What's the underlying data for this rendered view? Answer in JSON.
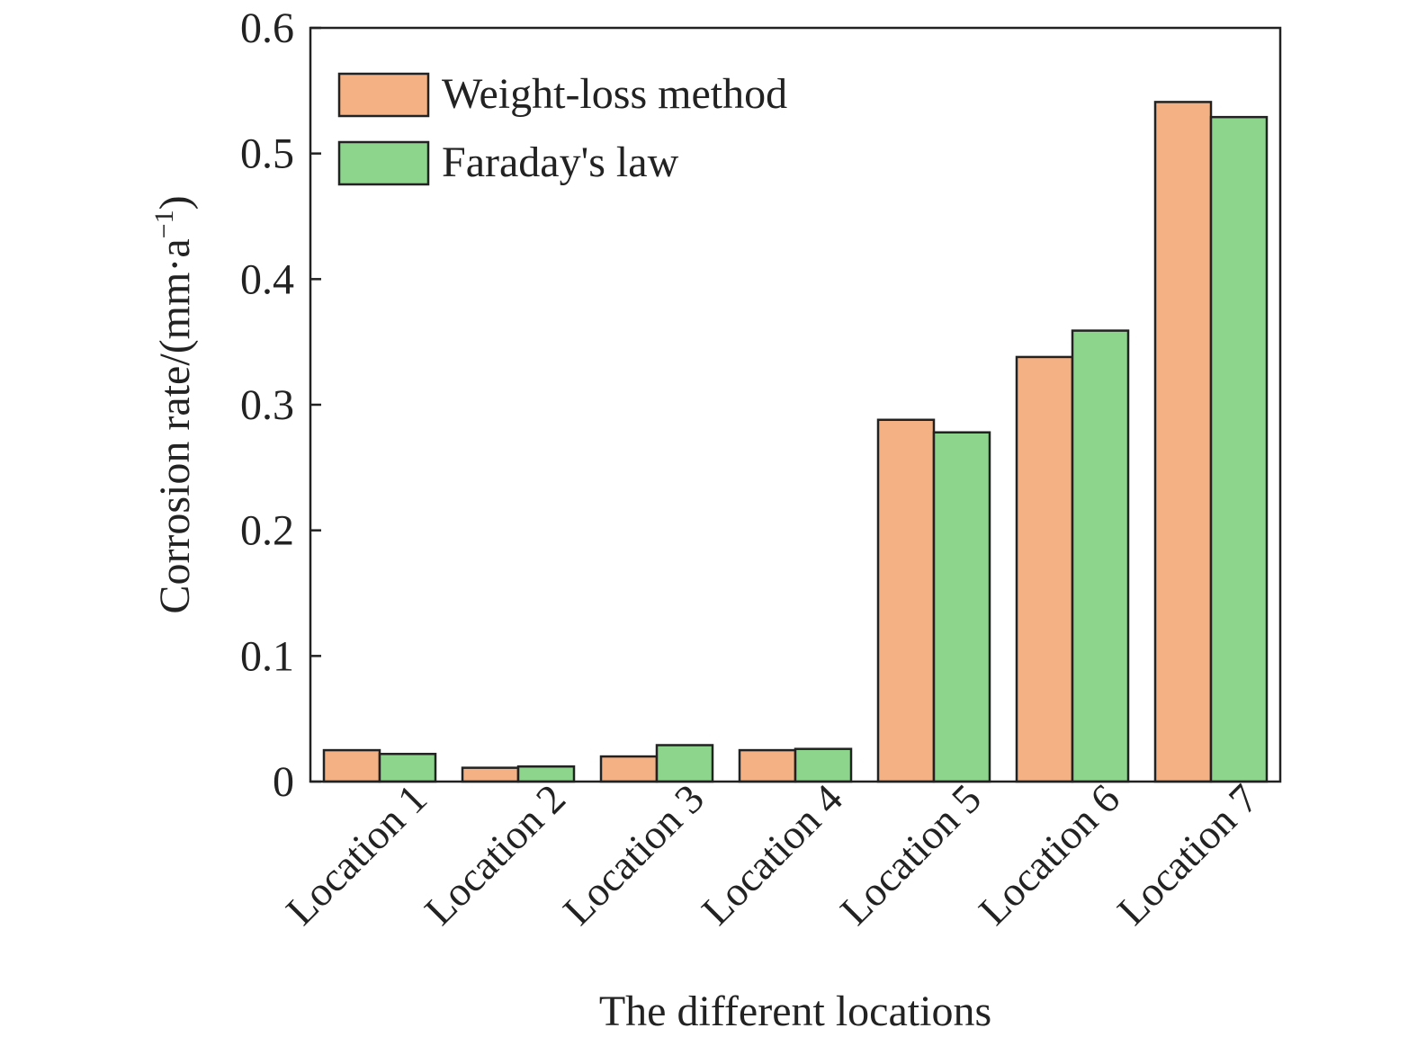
{
  "chart_data": {
    "type": "bar",
    "categories": [
      "Location 1",
      "Location 2",
      "Location 3",
      "Location 4",
      "Location 5",
      "Location 6",
      "Location 7"
    ],
    "series": [
      {
        "name": "Weight-loss method",
        "color": "#F4B183",
        "values": [
          0.025,
          0.011,
          0.02,
          0.025,
          0.288,
          0.338,
          0.541
        ]
      },
      {
        "name": "Faraday's law",
        "color": "#8DD58D",
        "values": [
          0.022,
          0.012,
          0.029,
          0.026,
          0.278,
          0.359,
          0.529
        ]
      }
    ],
    "xlabel": "The different locations",
    "ylabel_main": "Corrosion rate/(mm·a",
    "ylabel_sup": "−1",
    "ylabel_end": ")",
    "ylim": [
      0,
      0.6
    ],
    "yticks": [
      "0",
      "0.1",
      "0.2",
      "0.3",
      "0.4",
      "0.5",
      "0.6"
    ],
    "legend_position": "top-left",
    "grid": false
  }
}
